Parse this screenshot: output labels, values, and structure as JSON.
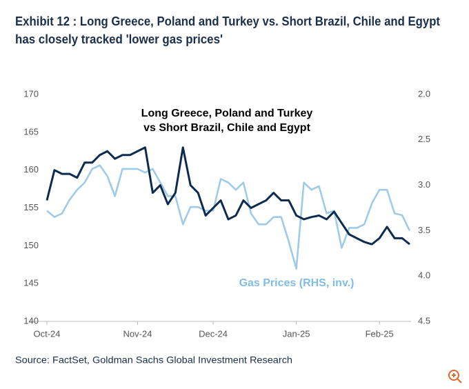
{
  "chart_data": {
    "type": "line",
    "title": [
      "Exhibit 12 : Long Greece, Poland and Turkey vs. Short Brazil, Chile and Egypt",
      "has closely tracked 'lower gas prices'"
    ],
    "source": "Source: FactSet, Goldman Sachs Global Investment Research",
    "annotations": [
      "Long Greece, Poland and Turkey",
      "vs Short Brazil, Chile and Egypt",
      "Gas Prices (RHS, inv.)"
    ],
    "categories": [
      "Oct-24",
      null,
      null,
      null,
      null,
      null,
      null,
      null,
      null,
      null,
      null,
      null,
      "Nov-24",
      null,
      null,
      null,
      null,
      null,
      null,
      null,
      null,
      null,
      "Dec-24",
      null,
      null,
      null,
      null,
      null,
      null,
      null,
      null,
      null,
      null,
      "Jan-25",
      null,
      null,
      null,
      null,
      null,
      null,
      null,
      null,
      null,
      null,
      "Feb-25",
      null,
      null,
      null,
      null
    ],
    "series": [
      {
        "name": "Long Greece, Poland and Turkey vs Short Brazil, Chile and Egypt",
        "color": "#0d2b4e",
        "values": [
          156,
          160,
          159.5,
          159.5,
          159,
          161,
          161,
          162,
          162.5,
          161.5,
          162,
          162,
          162.5,
          163,
          157,
          158,
          155.5,
          157,
          163,
          158,
          157,
          154,
          155,
          156,
          153.5,
          154,
          156,
          155,
          155.5,
          156,
          157,
          156,
          156,
          154,
          153.5,
          153.8,
          154,
          153.5,
          154.5,
          153,
          151.5,
          151,
          150.5,
          150.2,
          151,
          152.5,
          151,
          151,
          150.2
        ]
      },
      {
        "name": "Gas Prices (RHS, inv.)",
        "color": "#9fcbe8",
        "axis": "y2",
        "values": [
          3.28,
          3.35,
          3.31,
          3.16,
          3.05,
          2.97,
          2.82,
          2.78,
          2.9,
          3.12,
          2.82,
          2.82,
          2.82,
          2.86,
          2.82,
          2.97,
          3.12,
          3.12,
          3.43,
          3.24,
          3.24,
          3.28,
          3.28,
          2.93,
          2.97,
          3.05,
          2.97,
          3.31,
          3.43,
          3.43,
          3.35,
          3.35,
          3.62,
          3.92,
          2.97,
          3.05,
          3.01,
          3.31,
          3.28,
          3.69,
          3.47,
          3.47,
          3.43,
          3.2,
          3.05,
          3.05,
          3.31,
          3.33,
          3.5
        ]
      }
    ],
    "ylim": [
      140,
      170
    ],
    "yticks": [
      140,
      145,
      150,
      155,
      160,
      165,
      170
    ],
    "y2lim": [
      4.5,
      2.0
    ],
    "y2ticks": [
      {
        "value": 4,
        "label": "4.0"
      },
      4.5,
      3.5,
      {
        "value": 3,
        "label": "3.0"
      },
      2.5,
      {
        "value": 2,
        "label": "2.0"
      }
    ],
    "grid": false
  }
}
